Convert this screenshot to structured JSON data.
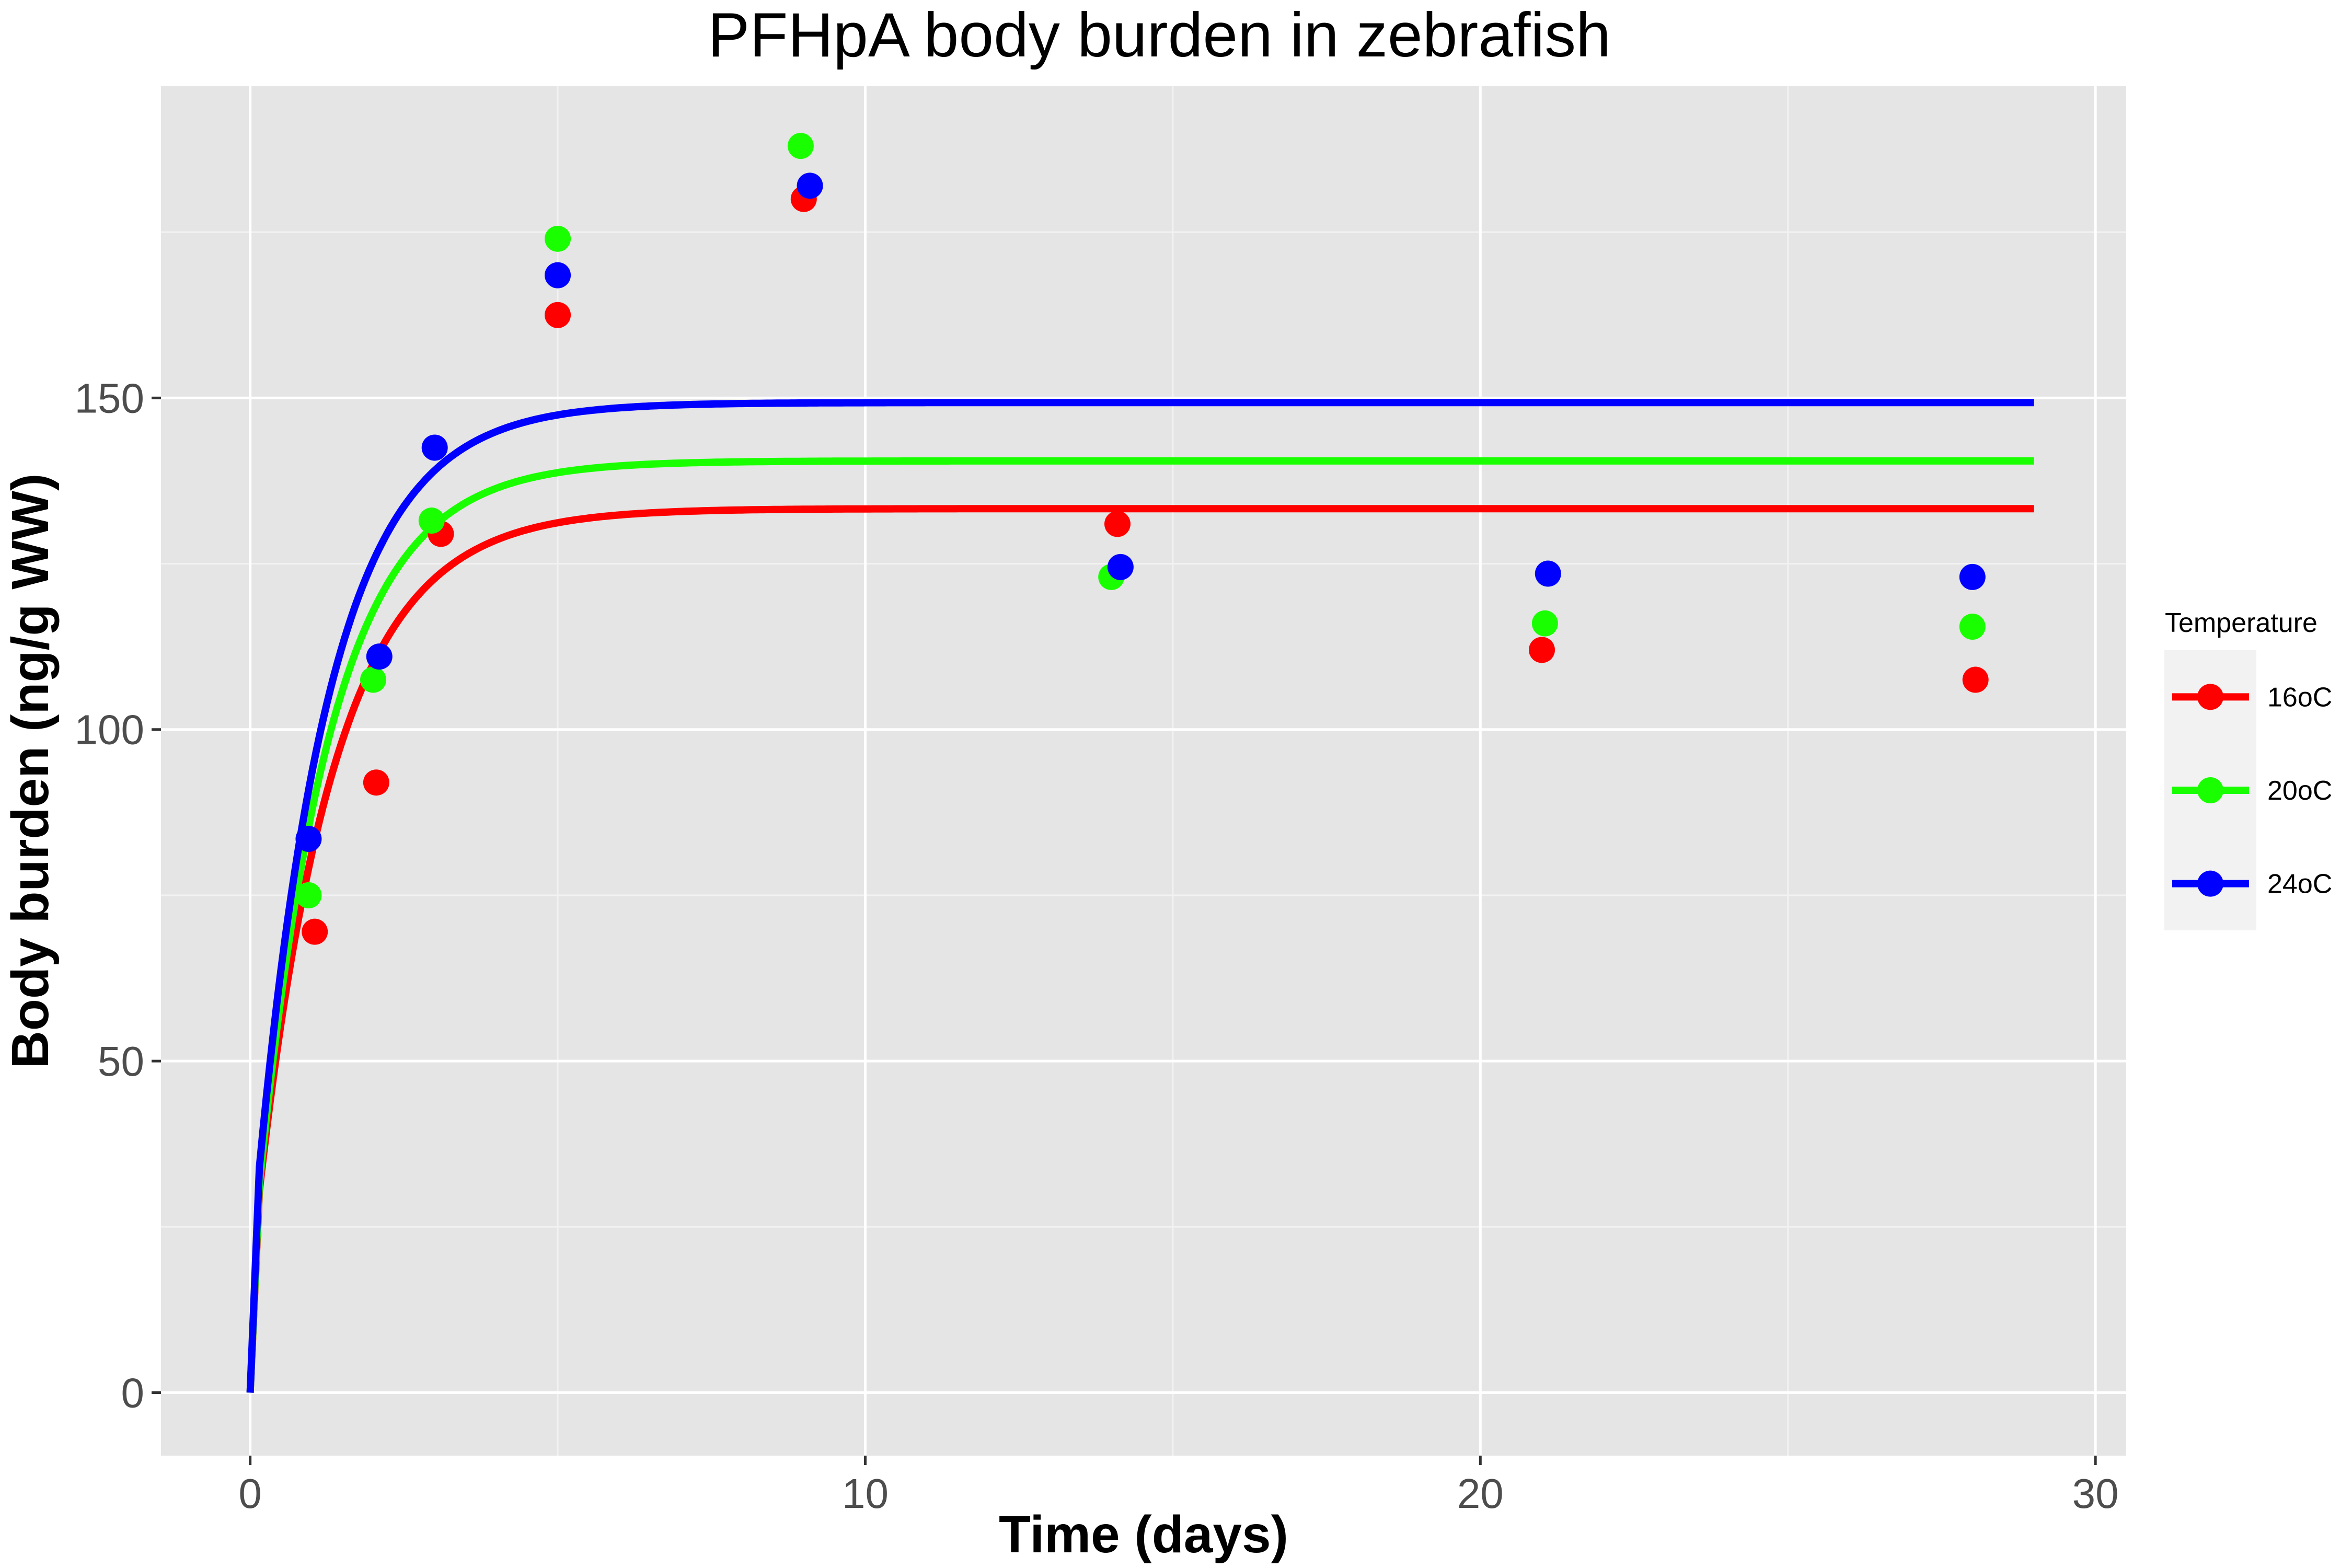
{
  "chart_data": {
    "type": "scatter",
    "title": "PFHpA body burden in zebrafish",
    "xlabel": "Time (days)",
    "ylabel": "Body burden (ng/g WW)",
    "xlim": [
      -1.45,
      30.5
    ],
    "ylim": [
      -9.5,
      197
    ],
    "x_ticks": [
      0,
      10,
      20,
      30
    ],
    "y_ticks": [
      0,
      50,
      100,
      150
    ],
    "grid": true,
    "legend_title": "Temperature",
    "legend_position": "right",
    "series": [
      {
        "name": "16oC",
        "color": "#ff0000",
        "points": [
          [
            1.05,
            69.5
          ],
          [
            2.05,
            92
          ],
          [
            3.1,
            129.5
          ],
          [
            5.0,
            162.5
          ],
          [
            9.0,
            180
          ],
          [
            14.1,
            131
          ],
          [
            21.0,
            112
          ],
          [
            28.05,
            107.5
          ]
        ],
        "fit": {
          "plateau": 133.3,
          "rate": 0.8,
          "start": 30.5,
          "x_end": 29
        }
      },
      {
        "name": "20oC",
        "color": "#1aff00",
        "points": [
          [
            0.95,
            75
          ],
          [
            2.0,
            107.5
          ],
          [
            2.95,
            131.5
          ],
          [
            5.0,
            174
          ],
          [
            8.95,
            188
          ],
          [
            14.0,
            123
          ],
          [
            21.05,
            116
          ],
          [
            28.0,
            115.5
          ]
        ],
        "fit": {
          "plateau": 140.5,
          "rate": 0.85,
          "start": 31.5,
          "x_end": 29
        }
      },
      {
        "name": "24oC",
        "color": "#0000ff",
        "points": [
          [
            0.95,
            83.5
          ],
          [
            2.1,
            111
          ],
          [
            3.0,
            142.5
          ],
          [
            5.0,
            168.5
          ],
          [
            9.1,
            182
          ],
          [
            14.15,
            124.5
          ],
          [
            21.1,
            123.5
          ],
          [
            28.0,
            123
          ]
        ],
        "fit": {
          "plateau": 149.3,
          "rate": 0.85,
          "start": 34,
          "x_end": 29
        }
      }
    ]
  }
}
